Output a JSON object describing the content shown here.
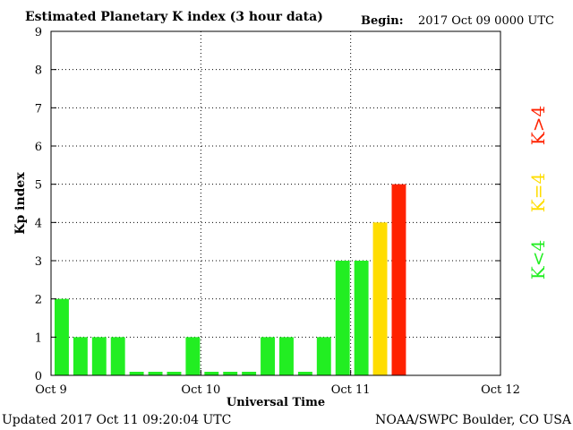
{
  "chart_data": {
    "type": "bar",
    "title": "Estimated Planetary K index (3 hour data)",
    "begin_label": "Begin:",
    "begin_value": "2017 Oct 09 0000 UTC",
    "ylabel": "Kp index",
    "xlabel": "Universal Time",
    "ylim": [
      0,
      9
    ],
    "yticks": [
      0,
      1,
      2,
      3,
      4,
      5,
      6,
      7,
      8,
      9
    ],
    "xticks": [
      "Oct 9",
      "Oct 10",
      "Oct 11",
      "Oct 12"
    ],
    "slots_total": 24,
    "grid": true,
    "colors": {
      "low": "#22ee22",
      "equal": "#ffdd00",
      "high": "#ff2200"
    },
    "values": [
      2,
      1,
      1,
      1,
      0,
      0,
      0,
      1,
      0,
      0,
      0,
      1,
      1,
      0,
      1,
      3,
      3,
      4,
      5
    ],
    "legend": [
      {
        "label": "K>4",
        "color": "#ff2200"
      },
      {
        "label": "K=4",
        "color": "#ffdd00"
      },
      {
        "label": "K<4",
        "color": "#22ee22"
      }
    ]
  },
  "footer": {
    "updated": "Updated 2017 Oct 11 09:20:04 UTC",
    "source": "NOAA/SWPC Boulder, CO USA"
  }
}
